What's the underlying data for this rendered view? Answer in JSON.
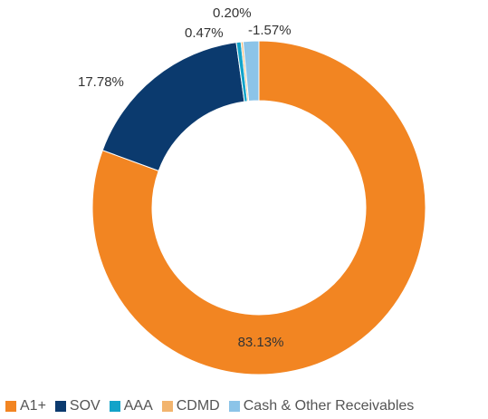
{
  "chart_data": {
    "type": "donut",
    "title": "",
    "series": [
      {
        "name": "A1+",
        "value": 83.13,
        "label": "83.13%",
        "color": "#F28522"
      },
      {
        "name": "SOV",
        "value": 17.78,
        "label": "17.78%",
        "color": "#0B3A6E"
      },
      {
        "name": "AAA",
        "value": 0.47,
        "label": "0.47%",
        "color": "#12A3C9"
      },
      {
        "name": "CDMD",
        "value": 0.2,
        "label": "0.20%",
        "color": "#F2B46E"
      },
      {
        "name": "Cash & Other Receivables",
        "value": -1.57,
        "label": "-1.57%",
        "color": "#8CC4E8"
      }
    ],
    "legend": "bottom-left"
  }
}
